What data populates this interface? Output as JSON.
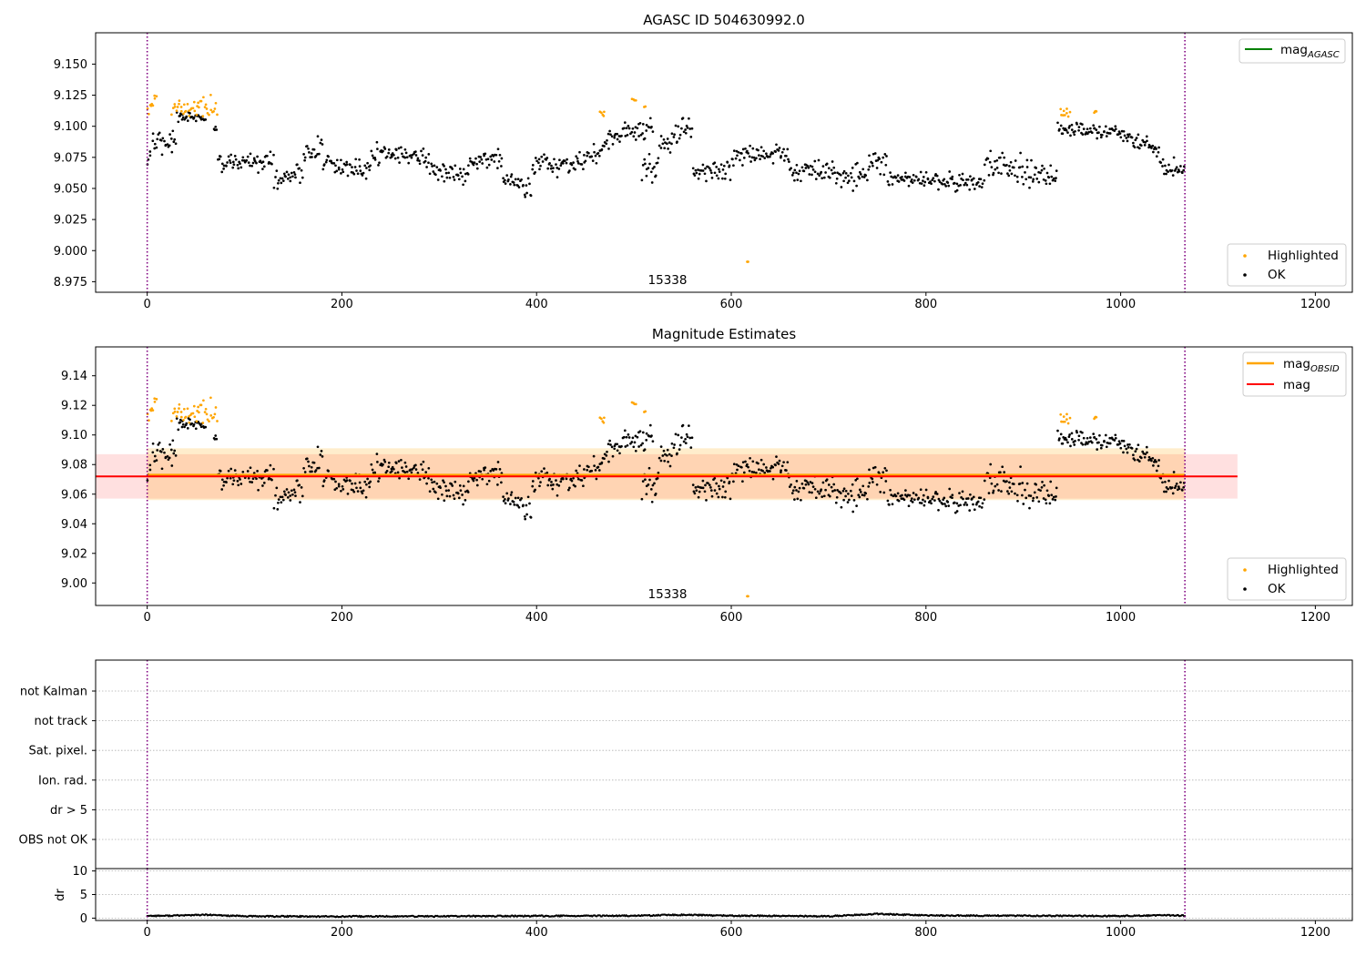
{
  "chart_data": [
    {
      "type": "scatter",
      "title": "AGASC ID 504630992.0",
      "xlabel": "",
      "ylabel": "",
      "xlim": [
        -53,
        1238
      ],
      "ylim": [
        8.9665,
        9.1752
      ],
      "x_ticks": [
        0,
        200,
        400,
        600,
        800,
        1000,
        1200
      ],
      "y_ticks": [
        8.975,
        9.0,
        9.025,
        9.05,
        9.075,
        9.1,
        9.125,
        9.15
      ],
      "y_tick_labels": [
        "8.975",
        "9.000",
        "9.025",
        "9.050",
        "9.075",
        "9.100",
        "9.125",
        "9.150"
      ],
      "obsid_boundaries": [
        0,
        1066
      ],
      "obsid_label": "15338",
      "line_legend": [
        {
          "name": "mag",
          "sub": "AGASC",
          "color": "#008000"
        }
      ],
      "point_legend": [
        {
          "name": "Highlighted",
          "color": "#ffa500"
        },
        {
          "name": "OK",
          "color": "#000000"
        }
      ],
      "highlighted_groups": [
        [
          0,
          10,
          9.118,
          0.006
        ],
        [
          25,
          72,
          9.116,
          0.007
        ],
        [
          465,
          470,
          9.11,
          0.003
        ],
        [
          498,
          502,
          9.121,
          0.001
        ],
        [
          510,
          512,
          9.115,
          0.001
        ],
        [
          616,
          618,
          8.991,
          0.0
        ],
        [
          938,
          948,
          9.111,
          0.003
        ],
        [
          972,
          976,
          9.112,
          0.001
        ]
      ],
      "ok_segments": [
        [
          0,
          4,
          9.075,
          9.075,
          0.008
        ],
        [
          5,
          30,
          9.088,
          9.088,
          0.008
        ],
        [
          30,
          60,
          9.108,
          9.106,
          0.003
        ],
        [
          68,
          72,
          9.098,
          9.098,
          0.003
        ],
        [
          72,
          130,
          9.07,
          9.072,
          0.007
        ],
        [
          130,
          160,
          9.056,
          9.064,
          0.006
        ],
        [
          160,
          180,
          9.075,
          9.085,
          0.008
        ],
        [
          180,
          230,
          9.07,
          9.065,
          0.006
        ],
        [
          230,
          290,
          9.078,
          9.075,
          0.006
        ],
        [
          290,
          330,
          9.065,
          9.06,
          0.007
        ],
        [
          330,
          365,
          9.07,
          9.075,
          0.007
        ],
        [
          365,
          395,
          9.058,
          9.048,
          0.006
        ],
        [
          395,
          450,
          9.068,
          9.07,
          0.006
        ],
        [
          450,
          468,
          9.075,
          9.082,
          0.007
        ],
        [
          468,
          520,
          9.09,
          9.1,
          0.007
        ],
        [
          508,
          525,
          9.065,
          9.065,
          0.009
        ],
        [
          525,
          560,
          9.08,
          9.1,
          0.008
        ],
        [
          560,
          600,
          9.063,
          9.066,
          0.006
        ],
        [
          600,
          660,
          9.075,
          9.078,
          0.007
        ],
        [
          660,
          700,
          9.065,
          9.064,
          0.007
        ],
        [
          700,
          740,
          9.062,
          9.058,
          0.007
        ],
        [
          740,
          760,
          9.068,
          9.07,
          0.008
        ],
        [
          760,
          860,
          9.058,
          9.055,
          0.006
        ],
        [
          860,
          935,
          9.07,
          9.058,
          0.009
        ],
        [
          935,
          1010,
          9.1,
          9.092,
          0.005
        ],
        [
          1010,
          1040,
          9.09,
          9.08,
          0.006
        ],
        [
          1040,
          1066,
          9.068,
          9.066,
          0.006
        ]
      ]
    },
    {
      "type": "scatter",
      "title": "Magnitude Estimates",
      "xlabel": "",
      "ylabel": "",
      "xlim": [
        -53,
        1238
      ],
      "ylim": [
        8.9848,
        9.1595
      ],
      "x_ticks": [
        0,
        200,
        400,
        600,
        800,
        1000,
        1200
      ],
      "y_ticks": [
        9.0,
        9.02,
        9.04,
        9.06,
        9.08,
        9.1,
        9.12,
        9.14
      ],
      "y_tick_labels": [
        "9.00",
        "9.02",
        "9.04",
        "9.06",
        "9.08",
        "9.10",
        "9.12",
        "9.14"
      ],
      "obsid_boundaries": [
        0,
        1066
      ],
      "obsid_label": "15338",
      "line_legend": [
        {
          "name": "mag",
          "sub": "OBSID",
          "color": "#ffa500"
        },
        {
          "name": "mag",
          "sub": "",
          "color": "#ff0000"
        }
      ],
      "point_legend": [
        {
          "name": "Highlighted",
          "color": "#ffa500"
        },
        {
          "name": "OK",
          "color": "#000000"
        }
      ],
      "mag_obsid": {
        "value": 9.073,
        "x": [
          0,
          1066
        ],
        "band": [
          9.056,
          9.091
        ]
      },
      "mag": {
        "value": 9.072,
        "x": [
          -53,
          1120
        ],
        "band": [
          9.057,
          9.087
        ]
      }
    },
    {
      "type": "table",
      "categories": [
        "not Kalman",
        "not track",
        "Sat. pixel.",
        "Ion. rad.",
        "dr > 5",
        "OBS not OK"
      ],
      "flag_counts": [
        0,
        0,
        0,
        0,
        0,
        0
      ],
      "xlim": [
        -53,
        1238
      ],
      "obsid_boundaries": [
        0,
        1066
      ]
    },
    {
      "type": "line",
      "ylabel": "dr",
      "xlim": [
        -53,
        1238
      ],
      "ylim": [
        -0.5,
        10.5
      ],
      "x_ticks": [
        0,
        200,
        400,
        600,
        800,
        1000,
        1200
      ],
      "y_ticks": [
        0,
        5,
        10
      ],
      "dr_profile": [
        [
          0,
          0.5
        ],
        [
          20,
          0.5
        ],
        [
          60,
          0.7
        ],
        [
          100,
          0.4
        ],
        [
          200,
          0.35
        ],
        [
          300,
          0.4
        ],
        [
          400,
          0.45
        ],
        [
          500,
          0.5
        ],
        [
          550,
          0.7
        ],
        [
          600,
          0.5
        ],
        [
          700,
          0.4
        ],
        [
          750,
          0.9
        ],
        [
          800,
          0.55
        ],
        [
          900,
          0.5
        ],
        [
          1000,
          0.45
        ],
        [
          1050,
          0.6
        ],
        [
          1066,
          0.5
        ]
      ],
      "obsid_boundaries": [
        0,
        1066
      ]
    }
  ]
}
